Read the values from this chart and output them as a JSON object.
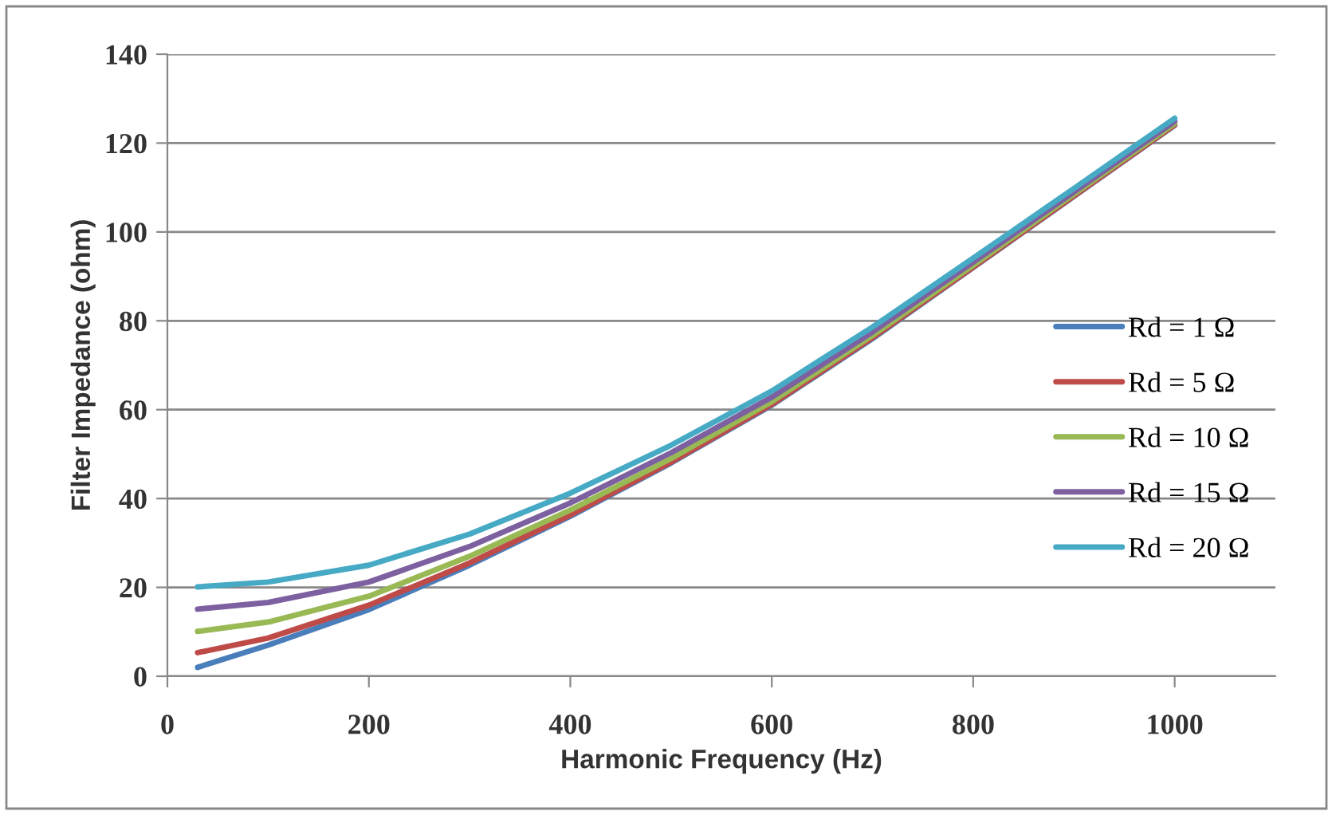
{
  "chart_data": {
    "type": "line",
    "xlabel": "Harmonic Frequency (Hz)",
    "ylabel": "Filter Impedance (ohm)",
    "x": [
      30,
      100,
      200,
      300,
      400,
      500,
      600,
      700,
      800,
      900,
      1000
    ],
    "series": [
      {
        "name": "Rd = 1 Ω",
        "color": "#4a7ebb",
        "values": [
          2,
          7,
          15,
          25,
          36,
          48,
          61,
          76,
          92,
          108,
          124
        ]
      },
      {
        "name": "Rd = 5 Ω",
        "color": "#be4b48",
        "values": [
          5.3,
          8.6,
          16,
          25.5,
          36.3,
          48.2,
          61.2,
          76.2,
          92.1,
          108.1,
          124.1
        ]
      },
      {
        "name": "Rd = 10 Ω",
        "color": "#98b954",
        "values": [
          10.1,
          12.2,
          18,
          27,
          37.4,
          49,
          61.8,
          76.7,
          92.5,
          108.5,
          124.4
        ]
      },
      {
        "name": "Rd = 15 Ω",
        "color": "#7d60a0",
        "values": [
          15.1,
          16.6,
          21.2,
          29.2,
          39,
          50.3,
          62.8,
          77.5,
          93.2,
          109,
          124.9
        ]
      },
      {
        "name": "Rd = 20 Ω",
        "color": "#46aac5",
        "values": [
          20.1,
          21.2,
          25,
          32,
          41.2,
          52,
          64.2,
          78.6,
          94.1,
          109.8,
          125.6
        ]
      }
    ],
    "xlim": [
      0,
      1100
    ],
    "xticks": [
      0,
      200,
      400,
      600,
      800,
      1000
    ],
    "ylim": [
      0,
      140
    ],
    "yticks": [
      0,
      20,
      40,
      60,
      80,
      100,
      120,
      140
    ],
    "grid": "y",
    "legend": "right",
    "marker": "none",
    "line_style": "solid"
  }
}
